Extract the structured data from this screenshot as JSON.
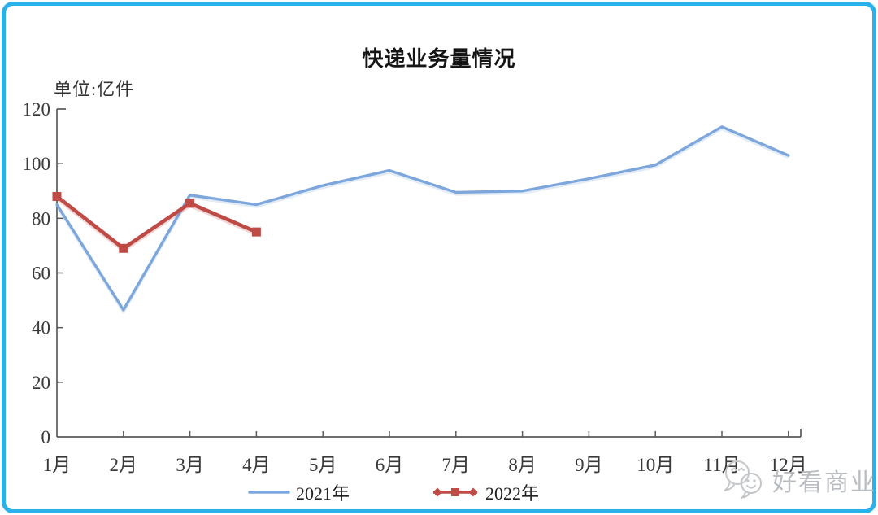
{
  "frame": {
    "border_color": "#29b2e9",
    "background": "#ffffff"
  },
  "title": "快递业务量情况",
  "unit_label": "单位:亿件",
  "legend": {
    "items": [
      {
        "label": "2021年",
        "swatch": "plain-line",
        "color": "#7da7dc"
      },
      {
        "label": "2022年",
        "swatch": "line-with-square-markers",
        "color": "#bf4b47"
      }
    ]
  },
  "watermark": {
    "icon": "chat-smiley-faces-icon",
    "text": "好看商业",
    "color": "#b9bdc1"
  },
  "chart_data": {
    "type": "line",
    "title": "快递业务量情况",
    "unit": "单位:亿件",
    "categories": [
      "1月",
      "2月",
      "3月",
      "4月",
      "5月",
      "6月",
      "7月",
      "8月",
      "9月",
      "10月",
      "11月",
      "12月"
    ],
    "series": [
      {
        "name": "2021年",
        "color": "#7da7dc",
        "marker": "none",
        "values": [
          85,
          46.5,
          88.5,
          85,
          92,
          97.5,
          89.5,
          90,
          94.5,
          99.5,
          113.5,
          103
        ]
      },
      {
        "name": "2022年",
        "color": "#bf4b47",
        "marker": "square",
        "values": [
          88,
          69,
          85.5,
          75
        ]
      }
    ],
    "xlabel": "",
    "ylabel": "单位:亿件",
    "ylim": [
      0,
      120
    ],
    "ytick_step": 20,
    "grid": false,
    "legend_position": "bottom",
    "axis_color": "#595959",
    "tick_label_color": "#3a3a3a"
  }
}
